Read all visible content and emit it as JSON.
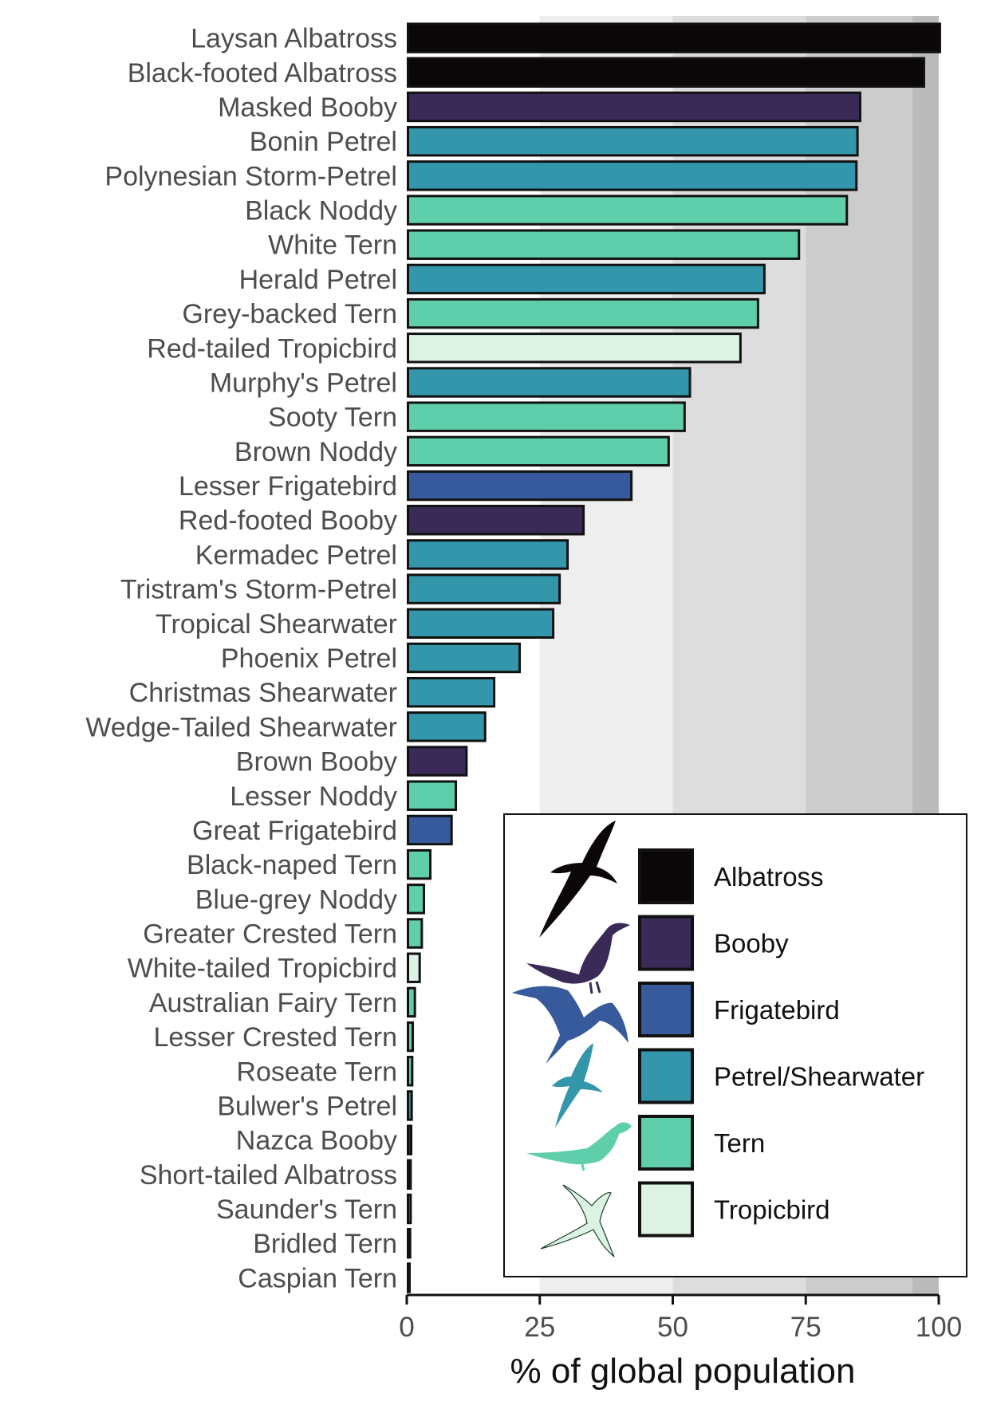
{
  "chart_data": {
    "type": "bar",
    "orientation": "horizontal",
    "xlabel": "% of global population",
    "ylabel": "",
    "xlim": [
      0,
      100
    ],
    "xticks": [
      "0",
      "25",
      "50",
      "75",
      "100"
    ],
    "background_bands": [
      {
        "from": 0,
        "to": 25,
        "color": "#ffffff"
      },
      {
        "from": 25,
        "to": 50,
        "color": "#eeeeee"
      },
      {
        "from": 50,
        "to": 75,
        "color": "#dddddd"
      },
      {
        "from": 75,
        "to": 95,
        "color": "#cccccc"
      },
      {
        "from": 95,
        "to": 100,
        "color": "#bbbbbb"
      }
    ],
    "groups": [
      {
        "name": "Albatross",
        "color": "#0b0607",
        "icon": "albatross-silhouette-icon"
      },
      {
        "name": "Booby",
        "color": "#3a2a58",
        "icon": "booby-silhouette-icon"
      },
      {
        "name": "Frigatebird",
        "color": "#375a9c",
        "icon": "frigatebird-silhouette-icon"
      },
      {
        "name": "Petrel/Shearwater",
        "color": "#3496ab",
        "icon": "petrel-silhouette-icon"
      },
      {
        "name": "Tern",
        "color": "#5fcfab",
        "icon": "tern-silhouette-icon"
      },
      {
        "name": "Tropicbird",
        "color": "#dcf3e4",
        "icon": "tropicbird-silhouette-icon"
      }
    ],
    "bars": [
      {
        "label": "Laysan Albatross",
        "value": 100,
        "group": "Albatross"
      },
      {
        "label": "Black-footed Albatross",
        "value": 97,
        "group": "Albatross"
      },
      {
        "label": "Masked Booby",
        "value": 85,
        "group": "Booby"
      },
      {
        "label": "Bonin Petrel",
        "value": 84.5,
        "group": "Petrel/Shearwater"
      },
      {
        "label": "Polynesian Storm-Petrel",
        "value": 84.3,
        "group": "Petrel/Shearwater"
      },
      {
        "label": "Black Noddy",
        "value": 82.5,
        "group": "Tern"
      },
      {
        "label": "White Tern",
        "value": 73.5,
        "group": "Tern"
      },
      {
        "label": "Herald Petrel",
        "value": 67,
        "group": "Petrel/Shearwater"
      },
      {
        "label": "Grey-backed Tern",
        "value": 65.8,
        "group": "Tern"
      },
      {
        "label": "Red-tailed Tropicbird",
        "value": 62.5,
        "group": "Tropicbird"
      },
      {
        "label": "Murphy's Petrel",
        "value": 53,
        "group": "Petrel/Shearwater"
      },
      {
        "label": "Sooty Tern",
        "value": 52,
        "group": "Tern"
      },
      {
        "label": "Brown Noddy",
        "value": 49,
        "group": "Tern"
      },
      {
        "label": "Lesser Frigatebird",
        "value": 42,
        "group": "Frigatebird"
      },
      {
        "label": "Red-footed Booby",
        "value": 33,
        "group": "Booby"
      },
      {
        "label": "Kermadec Petrel",
        "value": 30,
        "group": "Petrel/Shearwater"
      },
      {
        "label": "Tristram's Storm-Petrel",
        "value": 28.5,
        "group": "Petrel/Shearwater"
      },
      {
        "label": "Tropical Shearwater",
        "value": 27.3,
        "group": "Petrel/Shearwater"
      },
      {
        "label": "Phoenix Petrel",
        "value": 21,
        "group": "Petrel/Shearwater"
      },
      {
        "label": "Christmas Shearwater",
        "value": 16.2,
        "group": "Petrel/Shearwater"
      },
      {
        "label": "Wedge-Tailed Shearwater",
        "value": 14.5,
        "group": "Petrel/Shearwater"
      },
      {
        "label": "Brown Booby",
        "value": 11,
        "group": "Booby"
      },
      {
        "label": "Lesser Noddy",
        "value": 9,
        "group": "Tern"
      },
      {
        "label": "Great Frigatebird",
        "value": 8.2,
        "group": "Frigatebird"
      },
      {
        "label": "Black-naped Tern",
        "value": 4.2,
        "group": "Tern"
      },
      {
        "label": "Blue-grey Noddy",
        "value": 3,
        "group": "Tern"
      },
      {
        "label": "Greater Crested Tern",
        "value": 2.6,
        "group": "Tern"
      },
      {
        "label": "White-tailed Tropicbird",
        "value": 2.2,
        "group": "Tropicbird"
      },
      {
        "label": "Australian Fairy Tern",
        "value": 1.3,
        "group": "Tern"
      },
      {
        "label": "Lesser Crested Tern",
        "value": 0.9,
        "group": "Tern"
      },
      {
        "label": "Roseate Tern",
        "value": 0.8,
        "group": "Tern"
      },
      {
        "label": "Bulwer's Petrel",
        "value": 0.7,
        "group": "Petrel/Shearwater"
      },
      {
        "label": "Nazca Booby",
        "value": 0.6,
        "group": "Booby"
      },
      {
        "label": "Short-tailed Albatross",
        "value": 0.5,
        "group": "Albatross"
      },
      {
        "label": "Saunder's Tern",
        "value": 0.5,
        "group": "Tern"
      },
      {
        "label": "Bridled Tern",
        "value": 0.4,
        "group": "Tern"
      },
      {
        "label": "Caspian Tern",
        "value": 0.3,
        "group": "Tern"
      }
    ],
    "legend_position": "bottom-right",
    "grid": false
  }
}
